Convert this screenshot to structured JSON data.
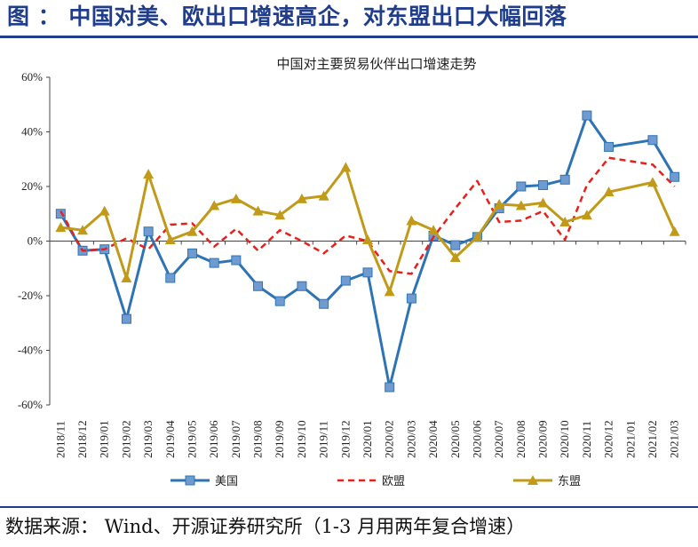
{
  "header": {
    "title": "图 ： 中国对美、欧出口增速高企，对东盟出口大幅回落"
  },
  "footer": {
    "source": "数据来源： Wind、开源证券研究所（1-3 月用两年复合增速）"
  },
  "colors": {
    "accent": "#1f3d8a",
    "us": "#2e74b5",
    "eu": "#e8201c",
    "asean": "#c09a18"
  },
  "chart_data": {
    "type": "line",
    "title": "中国对主要贸易伙伴出口增速走势",
    "categories": [
      "2018/11",
      "2018/12",
      "2019/01",
      "2019/02",
      "2019/03",
      "2019/04",
      "2019/05",
      "2019/06",
      "2019/07",
      "2019/08",
      "2019/09",
      "2019/10",
      "2019/11",
      "2019/12",
      "2020/01",
      "2020/02",
      "2020/03",
      "2020/04",
      "2020/05",
      "2020/06",
      "2020/07",
      "2020/08",
      "2020/09",
      "2020/10",
      "2020/11",
      "2020/12",
      "2021/01",
      "2021/02",
      "2021/03"
    ],
    "ylim": [
      -60,
      60
    ],
    "yticks": [
      -60,
      -40,
      -20,
      0,
      20,
      40,
      60
    ],
    "ytick_labels": [
      "-60%",
      "-40%",
      "-20%",
      "0%",
      "20%",
      "40%",
      "60%"
    ],
    "grid": false,
    "legend_position": "bottom",
    "series": [
      {
        "name": "美国",
        "style": "solid-square",
        "values": [
          10,
          -3.5,
          -3,
          -28.5,
          3.5,
          -13.5,
          -4.5,
          -8,
          -7,
          -16.5,
          -22,
          -16.5,
          -23,
          -14.5,
          -11.5,
          -53.5,
          -21,
          2,
          -1.5,
          1.5,
          12,
          20,
          20.5,
          22.5,
          46,
          34.5,
          null,
          37,
          23.5
        ]
      },
      {
        "name": "欧盟",
        "style": "dashed",
        "values": [
          11,
          -3.5,
          -3,
          1,
          -3,
          6,
          6.5,
          -2,
          4.5,
          -3.5,
          4,
          0,
          -4.5,
          2,
          0,
          -11,
          -12,
          1.5,
          12,
          22,
          7,
          7.5,
          11,
          0.5,
          20.5,
          30.5,
          null,
          28,
          20
        ]
      },
      {
        "name": "东盟",
        "style": "solid-triangle",
        "values": [
          5,
          4,
          11,
          -13.5,
          24.5,
          0.5,
          3.5,
          13,
          15.5,
          11,
          9.5,
          15.5,
          16.5,
          27,
          0.5,
          -18.5,
          7.5,
          4,
          -6,
          1.5,
          13.5,
          13,
          14,
          7,
          9.5,
          18,
          null,
          21.5,
          3.5
        ]
      }
    ]
  }
}
